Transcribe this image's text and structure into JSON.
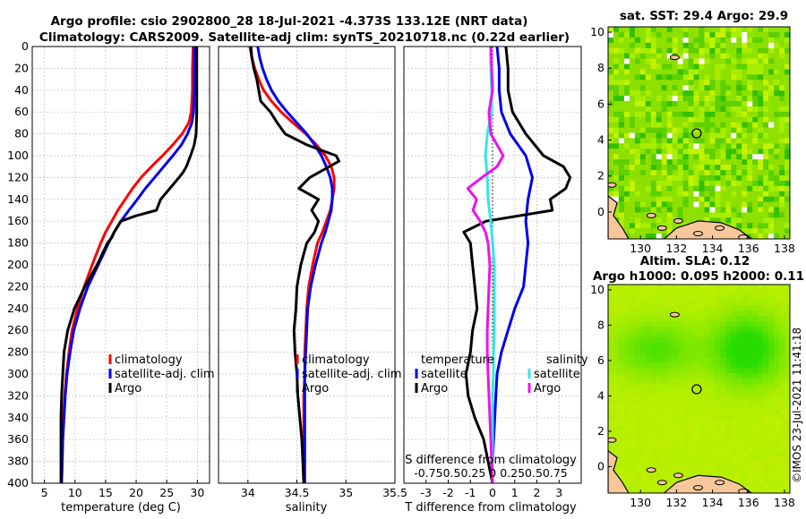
{
  "header": {
    "line1": "Argo profile: csio 2902800_28 18-Jul-2021 -4.373S 133.12E (NRT data)",
    "line2": "Climatology: CARS2009. Satellite-adj clim: synTS_20210718.nc (0.22d earlier)"
  },
  "depth_axis": {
    "ylim": [
      0,
      400
    ],
    "ticks": [
      "0",
      "20",
      "40",
      "60",
      "80",
      "100",
      "120",
      "140",
      "160",
      "180",
      "200",
      "220",
      "240",
      "260",
      "280",
      "300",
      "320",
      "340",
      "360",
      "380",
      "400"
    ]
  },
  "legend": {
    "climatology": "climatology",
    "satellite": "satellite-adj. clim",
    "argo": "Argo",
    "temperature": "temperature",
    "salinity": "salinity",
    "satellite_short": "satellite"
  },
  "colors": {
    "climatology": "#ff0000",
    "satellite": "#0000ee",
    "argo": "#000000",
    "salinity_satellite": "#33e8e8",
    "salinity_argo": "#ee11ee"
  },
  "maps": {
    "sst_title": "sat. SST: 29.4 Argo: 29.9",
    "sla_title1": "Altim. SLA: 0.12",
    "sla_title2": "Argo h1000: 0.095 h2000: 0.11",
    "x_ticks": [
      "130",
      "132",
      "134",
      "136",
      "138"
    ],
    "y_ticks": [
      "0",
      "2",
      "4",
      "6",
      "8",
      "10"
    ]
  },
  "credit": "©IMOS 23-Jul-2021 11:41:18",
  "chart_data": [
    {
      "type": "line",
      "title": "",
      "xlabel": "temperature (deg C)",
      "ylabel": "",
      "xlim": [
        3,
        32
      ],
      "ylim": [
        400,
        0
      ],
      "x_ticks": [
        "5",
        "10",
        "15",
        "20",
        "25",
        "30"
      ],
      "series": [
        {
          "name": "climatology",
          "depth": [
            0,
            20,
            40,
            60,
            70,
            80,
            90,
            100,
            110,
            120,
            130,
            140,
            150,
            160,
            170,
            180,
            200,
            220,
            240,
            260,
            280,
            300,
            320,
            340,
            360,
            380,
            400
          ],
          "values": [
            29.3,
            29.2,
            29.2,
            29.0,
            28.6,
            27.5,
            26.0,
            24.3,
            22.5,
            20.8,
            19.4,
            18.2,
            17.0,
            16.0,
            15.0,
            14.2,
            12.8,
            11.5,
            10.4,
            9.5,
            9.0,
            8.6,
            8.3,
            8.1,
            8.0,
            7.9,
            7.8
          ]
        },
        {
          "name": "satellite-adj. clim",
          "depth": [
            0,
            20,
            40,
            60,
            70,
            80,
            90,
            100,
            110,
            120,
            130,
            140,
            150,
            160,
            170,
            180,
            200,
            220,
            240,
            260,
            280,
            300,
            320,
            340,
            360,
            380,
            400
          ],
          "values": [
            29.5,
            29.5,
            29.5,
            29.4,
            29.1,
            28.4,
            27.4,
            26.0,
            24.5,
            23.0,
            21.5,
            20.2,
            18.8,
            17.5,
            16.4,
            15.5,
            13.8,
            12.1,
            10.8,
            9.8,
            9.2,
            8.7,
            8.4,
            8.2,
            8.0,
            7.9,
            7.8
          ]
        },
        {
          "name": "Argo",
          "depth": [
            0,
            20,
            40,
            60,
            80,
            90,
            100,
            110,
            115,
            120,
            130,
            140,
            150,
            155,
            160,
            170,
            175,
            180,
            200,
            220,
            240,
            260,
            280,
            300,
            320,
            340,
            360,
            380,
            400
          ],
          "values": [
            29.9,
            29.9,
            29.9,
            29.9,
            29.8,
            29.5,
            28.9,
            28.2,
            27.7,
            27.0,
            25.5,
            24.0,
            23.3,
            20.0,
            17.5,
            16.4,
            16.0,
            15.3,
            13.6,
            11.6,
            9.9,
            8.8,
            8.2,
            8.0,
            7.8,
            7.7,
            7.7,
            7.7,
            7.7
          ]
        }
      ]
    },
    {
      "type": "line",
      "title": "",
      "xlabel": "salinity",
      "ylabel": "",
      "xlim": [
        33.7,
        35.5
      ],
      "ylim": [
        400,
        0
      ],
      "x_ticks": [
        "34",
        "34.5",
        "35",
        "35.5"
      ],
      "series": [
        {
          "name": "climatology",
          "depth": [
            0,
            10,
            20,
            30,
            40,
            50,
            60,
            70,
            80,
            90,
            100,
            110,
            120,
            130,
            140,
            150,
            160,
            170,
            180,
            200,
            220,
            240,
            260,
            280,
            300,
            320,
            340,
            360,
            380,
            400
          ],
          "values": [
            34.02,
            34.04,
            34.07,
            34.11,
            34.16,
            34.24,
            34.34,
            34.46,
            34.59,
            34.7,
            34.79,
            34.85,
            34.88,
            34.88,
            34.86,
            34.84,
            34.8,
            34.76,
            34.71,
            34.66,
            34.62,
            34.6,
            34.59,
            34.58,
            34.58,
            34.57,
            34.57,
            34.57,
            34.57,
            34.57
          ]
        },
        {
          "name": "satellite-adj. clim",
          "depth": [
            0,
            10,
            20,
            30,
            40,
            50,
            60,
            70,
            80,
            90,
            100,
            110,
            120,
            130,
            140,
            150,
            160,
            170,
            180,
            200,
            220,
            240,
            260,
            280,
            300,
            320,
            340,
            360,
            380,
            400
          ],
          "values": [
            34.1,
            34.12,
            34.15,
            34.19,
            34.24,
            34.31,
            34.4,
            34.5,
            34.6,
            34.68,
            34.75,
            34.8,
            34.84,
            34.86,
            34.86,
            34.85,
            34.82,
            34.79,
            34.75,
            34.69,
            34.64,
            34.61,
            34.6,
            34.59,
            34.58,
            34.58,
            34.58,
            34.58,
            34.58,
            34.58
          ]
        },
        {
          "name": "Argo",
          "depth": [
            0,
            10,
            20,
            30,
            40,
            50,
            60,
            70,
            80,
            90,
            100,
            105,
            110,
            120,
            130,
            140,
            150,
            160,
            170,
            180,
            200,
            220,
            240,
            260,
            280,
            300,
            320,
            340,
            360,
            380,
            400
          ],
          "values": [
            34.03,
            34.04,
            34.06,
            34.09,
            34.11,
            34.13,
            34.23,
            34.3,
            34.38,
            34.6,
            34.9,
            34.93,
            34.83,
            34.63,
            34.52,
            34.72,
            34.65,
            34.72,
            34.68,
            34.6,
            34.54,
            34.5,
            34.49,
            34.47,
            34.48,
            34.5,
            34.51,
            34.53,
            34.55,
            34.56,
            34.57
          ]
        }
      ]
    },
    {
      "type": "line",
      "title": "",
      "xlabel": "T difference from climatology",
      "xlabel_top": "S difference from climatology",
      "ylabel": "",
      "xlim": [
        -4,
        4
      ],
      "ylim": [
        400,
        0
      ],
      "x_ticks": [
        "-3",
        "-2",
        "-1",
        "0",
        "1",
        "2",
        "3"
      ],
      "s_ticks": [
        "-0.75",
        "-0.5",
        "-0.25",
        "0",
        "0.25",
        "0.5",
        "0.75"
      ],
      "s_axis_label": "-0.750.50.25 0  0.250.50.75",
      "series": [
        {
          "name": "temperature satellite",
          "axis": "T",
          "depth": [
            0,
            20,
            40,
            60,
            80,
            100,
            120,
            140,
            160,
            180,
            200,
            220,
            240,
            260,
            280,
            300,
            320,
            340,
            360,
            380,
            400
          ],
          "values": [
            0.2,
            0.3,
            0.3,
            0.4,
            0.8,
            1.5,
            1.8,
            1.6,
            1.5,
            1.6,
            1.5,
            1.4,
            1.0,
            0.7,
            0.4,
            0.2,
            0.15,
            0.1,
            0.05,
            0.0,
            0.0
          ]
        },
        {
          "name": "temperature Argo",
          "axis": "T",
          "depth": [
            0,
            20,
            40,
            60,
            80,
            100,
            110,
            120,
            130,
            140,
            150,
            160,
            170,
            180,
            200,
            220,
            240,
            260,
            280,
            300,
            320,
            340,
            360,
            380,
            400
          ],
          "values": [
            0.6,
            0.7,
            0.7,
            0.9,
            1.5,
            2.3,
            3.2,
            3.5,
            3.3,
            2.6,
            2.7,
            -0.3,
            -1.3,
            -1.0,
            -0.9,
            -0.8,
            -0.7,
            -0.9,
            -1.0,
            -1.2,
            -1.1,
            -0.8,
            -0.4,
            -0.2,
            0.0
          ]
        },
        {
          "name": "salinity satellite",
          "axis": "S",
          "depth": [
            0,
            20,
            40,
            60,
            80,
            100,
            120,
            140,
            160,
            180,
            200,
            220,
            240,
            260,
            280,
            300,
            320,
            340,
            360,
            380,
            400
          ],
          "values": [
            -0.02,
            -0.02,
            -0.01,
            -0.01,
            -0.06,
            -0.08,
            -0.06,
            -0.05,
            -0.02,
            0.0,
            0.02,
            0.02,
            0.02,
            0.02,
            0.01,
            0.01,
            0.0,
            0.0,
            0.0,
            0.0,
            0.0
          ]
        },
        {
          "name": "salinity Argo",
          "axis": "S",
          "depth": [
            0,
            20,
            40,
            60,
            70,
            80,
            90,
            100,
            110,
            120,
            130,
            140,
            150,
            160,
            170,
            180,
            200,
            220,
            240,
            260,
            280,
            300,
            320,
            340,
            360,
            380,
            400
          ],
          "values": [
            -0.02,
            -0.01,
            0.0,
            -0.04,
            -0.03,
            -0.02,
            0.05,
            0.12,
            0.05,
            -0.12,
            -0.28,
            -0.18,
            -0.22,
            -0.14,
            -0.08,
            -0.05,
            -0.03,
            -0.04,
            -0.05,
            -0.06,
            -0.06,
            -0.05,
            -0.04,
            -0.03,
            -0.02,
            -0.01,
            0.0
          ]
        }
      ]
    }
  ]
}
